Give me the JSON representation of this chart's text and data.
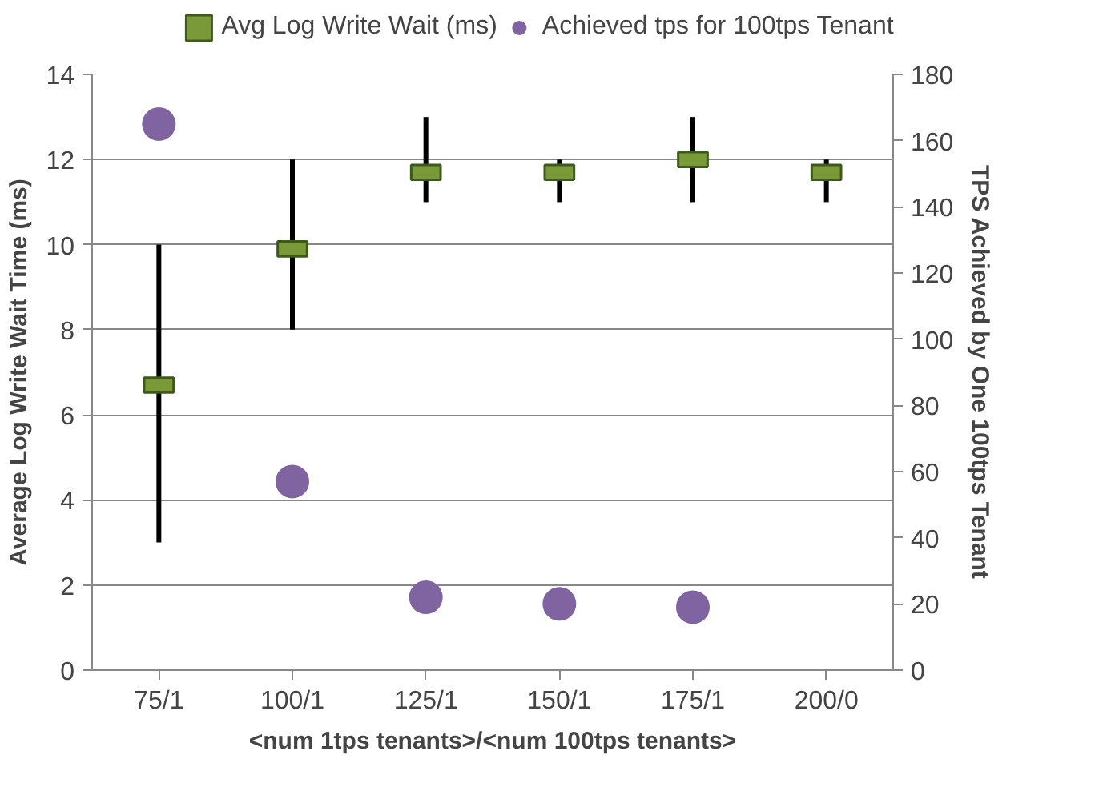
{
  "chart_data": {
    "type": "scatter",
    "xlabel": "<num 1tps tenants>/<num 100tps tenants>",
    "ylabel": "Average Log Write Wait Time (ms)",
    "y2label": "TPS Achieved by One 100tps Tenant",
    "categories": [
      "75/1",
      "100/1",
      "125/1",
      "150/1",
      "175/1",
      "200/0"
    ],
    "series": [
      {
        "name": "Avg Log Write Wait (ms)",
        "color": "#7a9a3a",
        "marker": "square",
        "values": [
          6.7,
          9.9,
          11.7,
          11.7,
          12.0,
          11.7
        ],
        "errors": [
          [
            3,
            10
          ],
          [
            8,
            12
          ],
          [
            11,
            13
          ],
          [
            11,
            12
          ],
          [
            11,
            13
          ],
          [
            11,
            12
          ]
        ]
      },
      {
        "name": "Achieved tps for 100tps Tenant",
        "color": "#8064a2",
        "marker": "circle",
        "axis": "y2",
        "values": [
          165,
          57,
          22,
          20,
          19,
          null
        ]
      }
    ],
    "ylim": [
      0,
      14
    ],
    "yticks": [
      0,
      2,
      4,
      6,
      8,
      10,
      12,
      14
    ],
    "y2lim": [
      0,
      180
    ],
    "y2ticks": [
      0,
      20,
      40,
      60,
      80,
      100,
      120,
      140,
      160,
      180
    ],
    "grid": "y",
    "legend": "top"
  }
}
